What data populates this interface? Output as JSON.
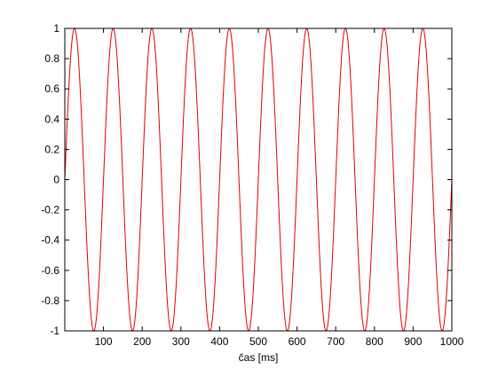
{
  "chart_data": {
    "type": "line",
    "title": "",
    "xlabel": "čas [ms]",
    "ylabel": "",
    "xlim": [
      0,
      1000
    ],
    "ylim": [
      -1,
      1
    ],
    "grid": false,
    "legend": "none",
    "x_ticks": [
      100,
      200,
      300,
      400,
      500,
      600,
      700,
      800,
      900,
      1000
    ],
    "x_tick_labels": [
      "100",
      "200",
      "300",
      "400",
      "500",
      "600",
      "700",
      "800",
      "900",
      "1000"
    ],
    "y_ticks": [
      1,
      0.8,
      0.6,
      0.4,
      0.2,
      0,
      -0.2,
      -0.4,
      -0.6,
      -0.8,
      -1
    ],
    "y_tick_labels": [
      "1",
      "0.8",
      "0.6",
      "0.4",
      "0.2",
      "0",
      "-0.2",
      "-0.4",
      "-0.6",
      "-0.8",
      "-1"
    ],
    "series": [
      {
        "function": "sine",
        "amplitude": 1,
        "frequency_hz": 10,
        "phase_rad": 0,
        "x_start_ms": 0,
        "x_end_ms": 1000,
        "color": "#e00000"
      }
    ]
  }
}
